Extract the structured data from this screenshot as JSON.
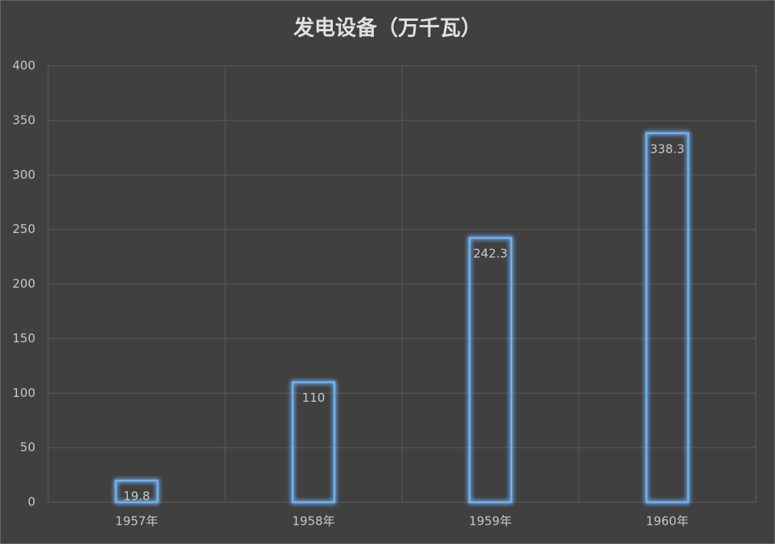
{
  "chart_data": {
    "type": "bar",
    "title": "发电设备（万千瓦）",
    "categories": [
      "1957年",
      "1958年",
      "1959年",
      "1960年"
    ],
    "values": [
      19.8,
      110,
      242.3,
      338.3
    ],
    "color": "#6fb0f0",
    "ylim": [
      0,
      400
    ],
    "yticks": [
      0,
      50,
      100,
      150,
      200,
      250,
      300,
      350,
      400
    ],
    "grid": true
  }
}
